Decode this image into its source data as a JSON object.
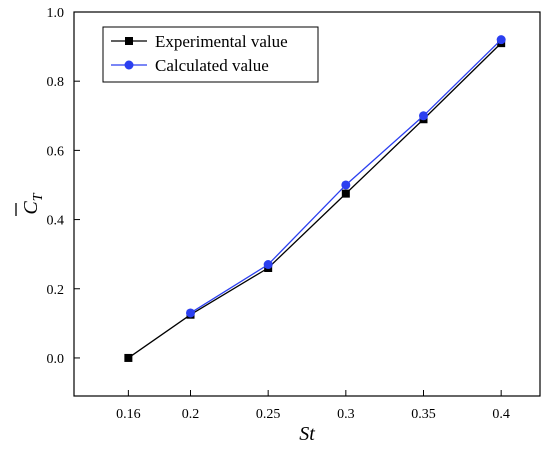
{
  "chart_data": {
    "type": "line",
    "title": "",
    "xlabel": "St",
    "ylabel": {
      "base": "C",
      "sub": "T"
    },
    "categories": [
      "0.16",
      "0.2",
      "0.25",
      "0.3",
      "0.35",
      "0.4"
    ],
    "x": [
      0.16,
      0.2,
      0.25,
      0.3,
      0.35,
      0.4
    ],
    "xlim": [
      0.125,
      0.425
    ],
    "ylim": [
      -0.11,
      1.0
    ],
    "yticks": [
      0.0,
      0.2,
      0.4,
      0.6,
      0.8,
      1.0
    ],
    "yticklabels": [
      "0.0",
      "0.2",
      "0.4",
      "0.6",
      "0.8",
      "1.0"
    ],
    "grid": false,
    "legend_position": "top-left",
    "series": [
      {
        "name": "Experimental value",
        "x": [
          0.16,
          0.2,
          0.25,
          0.3,
          0.35,
          0.4
        ],
        "values": [
          0.0,
          0.125,
          0.26,
          0.475,
          0.69,
          0.91
        ],
        "color": "#000000",
        "marker": "square"
      },
      {
        "name": "Calculated value",
        "x": [
          0.2,
          0.25,
          0.3,
          0.35,
          0.4
        ],
        "values": [
          0.13,
          0.27,
          0.5,
          0.7,
          0.92
        ],
        "color": "#2b3ff0",
        "marker": "circle"
      }
    ]
  }
}
